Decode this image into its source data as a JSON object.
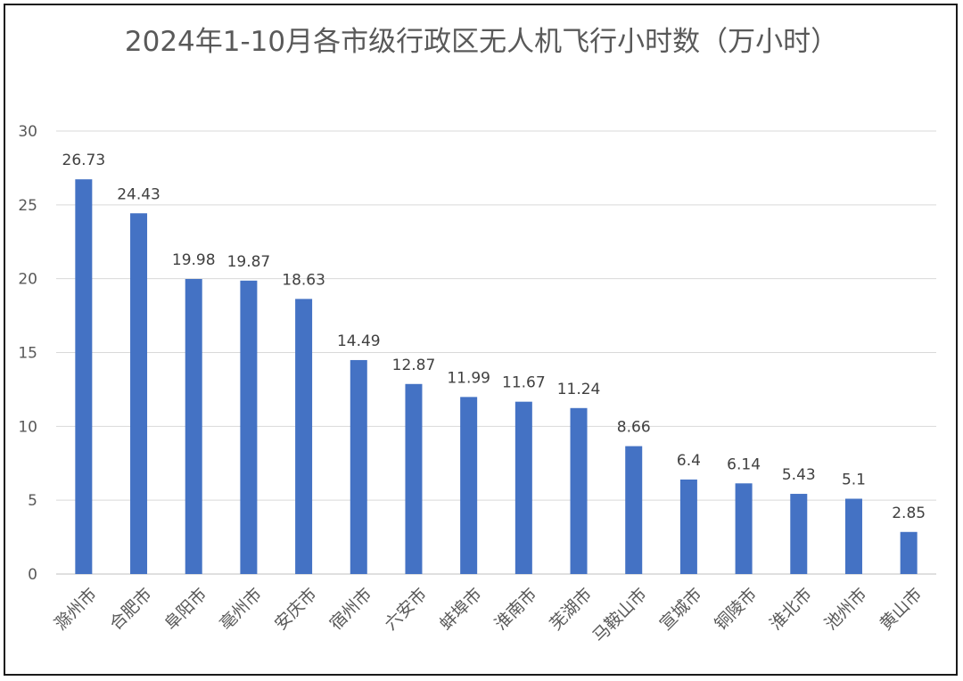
{
  "chart_data": {
    "type": "bar",
    "title": "2024年1-10月各市级行政区无人机飞行小时数（万小时）",
    "xlabel": "",
    "ylabel": "",
    "ylim": [
      0,
      30
    ],
    "yticks": [
      0,
      5,
      10,
      15,
      20,
      25,
      30
    ],
    "grid": true,
    "legend": "none",
    "bar_color": "#4472C4",
    "categories": [
      "滁州市",
      "合肥市",
      "阜阳市",
      "亳州市",
      "安庆市",
      "宿州市",
      "六安市",
      "蚌埠市",
      "淮南市",
      "芜湖市",
      "马鞍山市",
      "宣城市",
      "铜陵市",
      "淮北市",
      "池州市",
      "黄山市"
    ],
    "values": [
      26.73,
      24.43,
      19.98,
      19.87,
      18.63,
      14.49,
      12.87,
      11.99,
      11.67,
      11.24,
      8.66,
      6.4,
      6.14,
      5.43,
      5.1,
      2.85
    ],
    "value_labels": [
      "26.73",
      "24.43",
      "19.98",
      "19.87",
      "18.63",
      "14.49",
      "12.87",
      "11.99",
      "11.67",
      "11.24",
      "8.66",
      "6.4",
      "6.14",
      "5.43",
      "5.1",
      "2.85"
    ]
  }
}
